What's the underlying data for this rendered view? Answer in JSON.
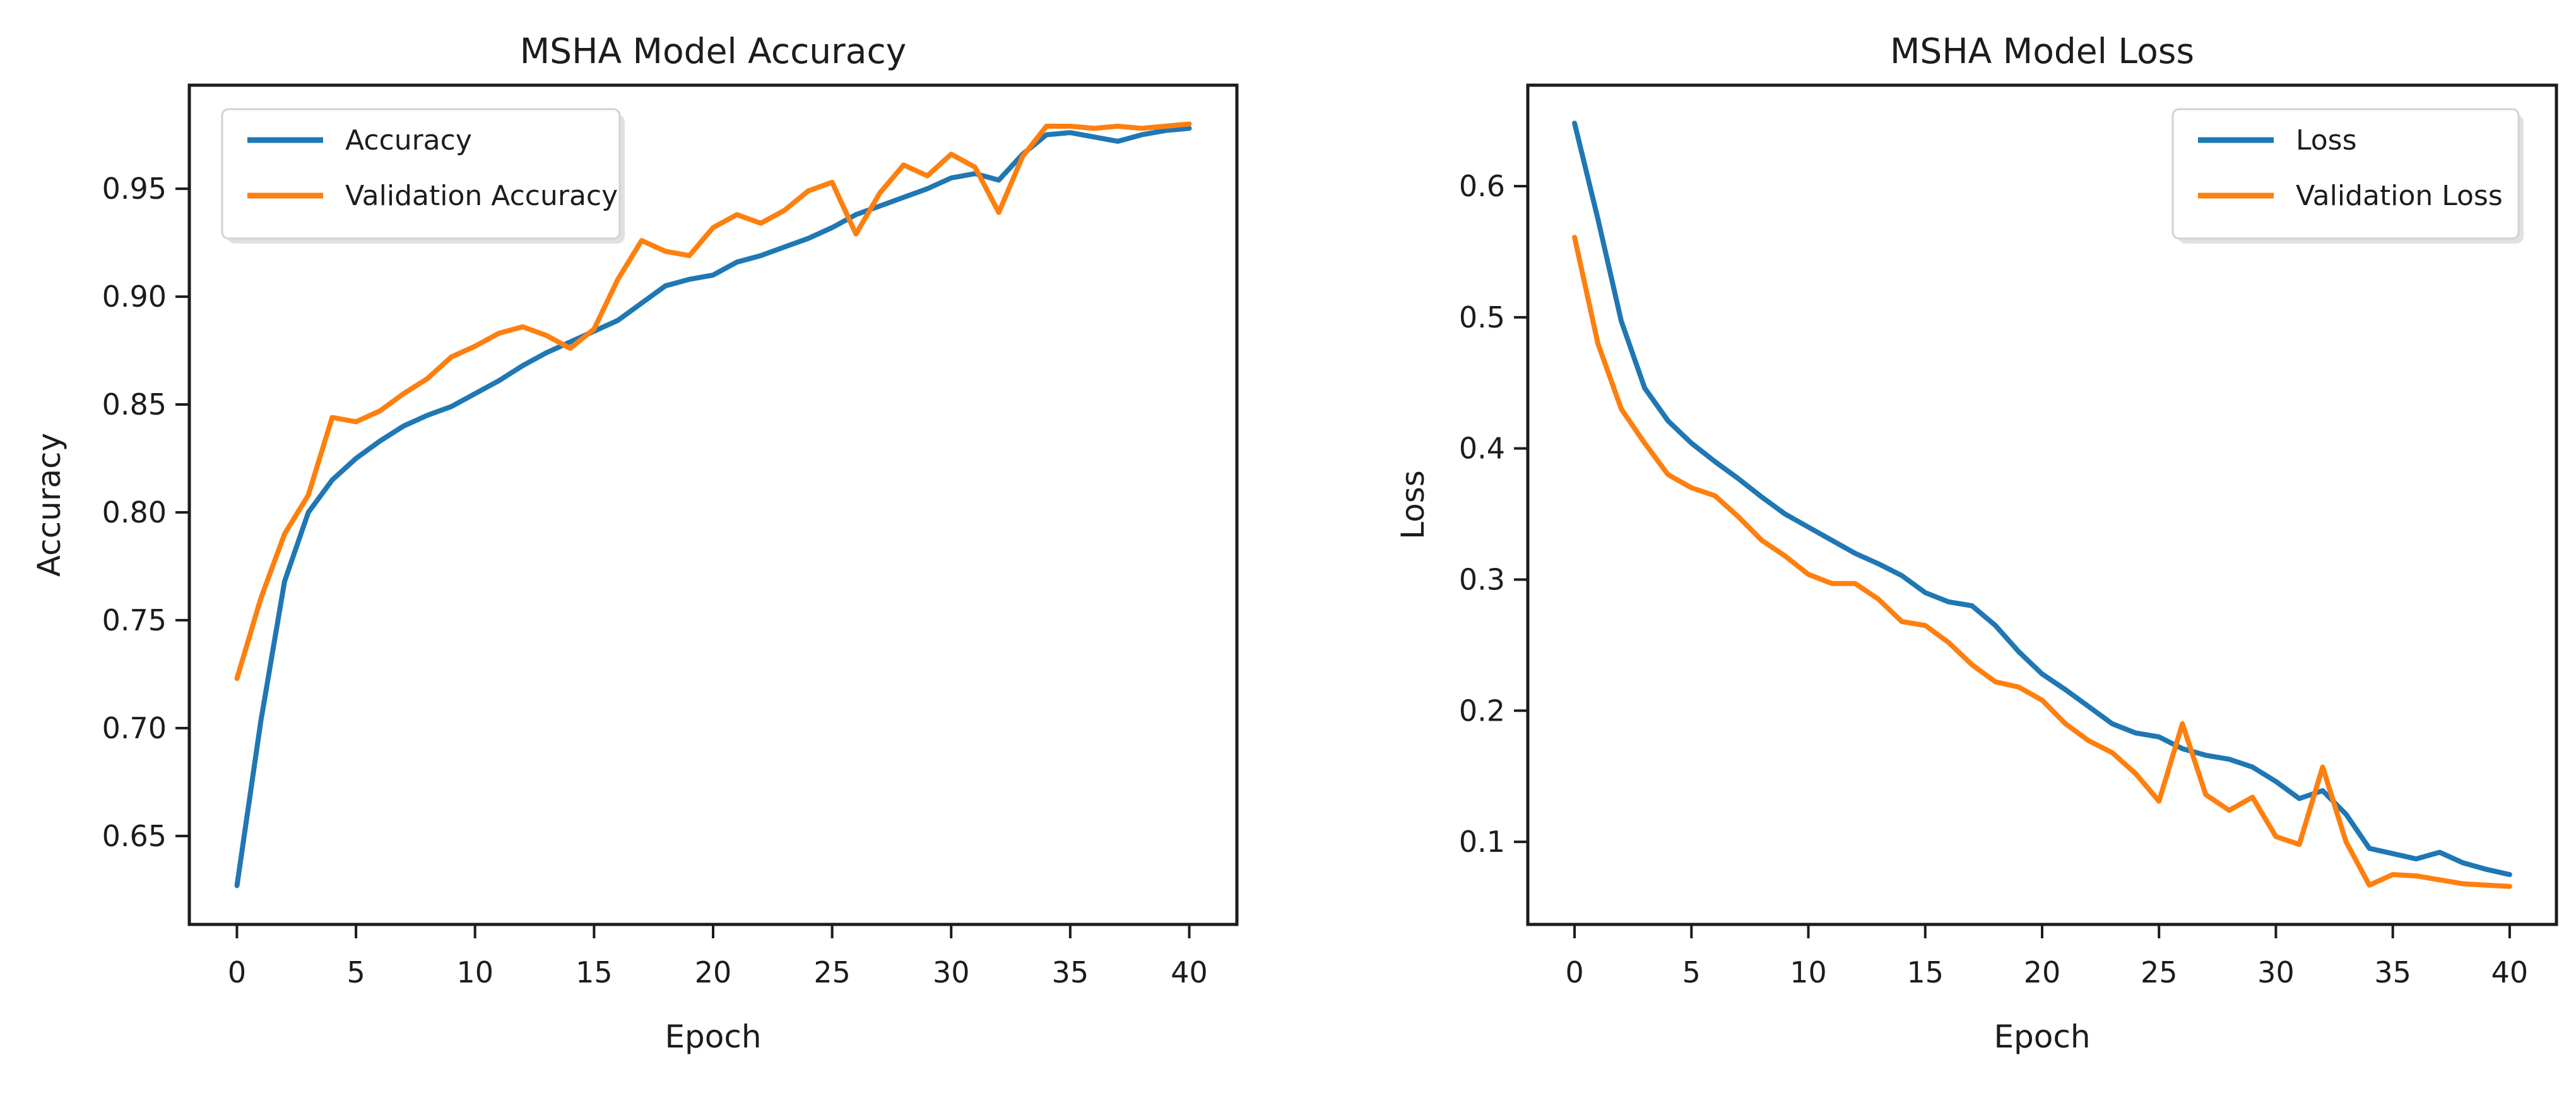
{
  "figure": {
    "background": "#ffffff",
    "text_color": "#1c1c1c",
    "spine_color": "#1c1c1c",
    "accent_blue": "#1f77b4",
    "accent_orange": "#ff7f0e"
  },
  "chart_data": [
    {
      "id": "accuracy",
      "type": "line",
      "title": "MSHA Model Accuracy",
      "xlabel": "Epoch",
      "ylabel": "Accuracy",
      "xlim": [
        -2,
        42
      ],
      "ylim": [
        0.609,
        0.998
      ],
      "xticks": [
        0,
        5,
        10,
        15,
        20,
        25,
        30,
        35,
        40
      ],
      "yticks": [
        0.65,
        0.7,
        0.75,
        0.8,
        0.85,
        0.9,
        0.95
      ],
      "ytick_decimals": 2,
      "grid": false,
      "legend": {
        "position": "upper-left",
        "entries": [
          {
            "label": "Accuracy",
            "color": "#1f77b4"
          },
          {
            "label": "Validation Accuracy",
            "color": "#ff7f0e"
          }
        ]
      },
      "x": [
        0,
        1,
        2,
        3,
        4,
        5,
        6,
        7,
        8,
        9,
        10,
        11,
        12,
        13,
        14,
        15,
        16,
        17,
        18,
        19,
        20,
        21,
        22,
        23,
        24,
        25,
        26,
        27,
        28,
        29,
        30,
        31,
        32,
        33,
        34,
        35,
        36,
        37,
        38,
        39,
        40
      ],
      "series": [
        {
          "name": "Accuracy",
          "color": "#1f77b4",
          "values": [
            0.627,
            0.703,
            0.768,
            0.8,
            0.815,
            0.825,
            0.833,
            0.84,
            0.845,
            0.849,
            0.855,
            0.861,
            0.868,
            0.874,
            0.879,
            0.884,
            0.889,
            0.897,
            0.905,
            0.908,
            0.91,
            0.916,
            0.919,
            0.923,
            0.927,
            0.932,
            0.938,
            0.942,
            0.946,
            0.95,
            0.955,
            0.957,
            0.954,
            0.966,
            0.975,
            0.976,
            0.974,
            0.972,
            0.975,
            0.977,
            0.978
          ]
        },
        {
          "name": "Validation Accuracy",
          "color": "#ff7f0e",
          "values": [
            0.723,
            0.76,
            0.79,
            0.808,
            0.844,
            0.842,
            0.847,
            0.855,
            0.862,
            0.872,
            0.877,
            0.883,
            0.886,
            0.882,
            0.876,
            0.885,
            0.908,
            0.926,
            0.921,
            0.919,
            0.932,
            0.938,
            0.934,
            0.94,
            0.949,
            0.953,
            0.929,
            0.948,
            0.961,
            0.956,
            0.966,
            0.96,
            0.939,
            0.965,
            0.979,
            0.979,
            0.978,
            0.979,
            0.978,
            0.979,
            0.98
          ]
        }
      ]
    },
    {
      "id": "loss",
      "type": "line",
      "title": "MSHA Model Loss",
      "xlabel": "Epoch",
      "ylabel": "Loss",
      "xlim": [
        -2,
        42
      ],
      "ylim": [
        0.037,
        0.677
      ],
      "xticks": [
        0,
        5,
        10,
        15,
        20,
        25,
        30,
        35,
        40
      ],
      "yticks": [
        0.1,
        0.2,
        0.3,
        0.4,
        0.5,
        0.6
      ],
      "ytick_decimals": 1,
      "grid": false,
      "legend": {
        "position": "upper-right",
        "entries": [
          {
            "label": "Loss",
            "color": "#1f77b4"
          },
          {
            "label": "Validation Loss",
            "color": "#ff7f0e"
          }
        ]
      },
      "x": [
        0,
        1,
        2,
        3,
        4,
        5,
        6,
        7,
        8,
        9,
        10,
        11,
        12,
        13,
        14,
        15,
        16,
        17,
        18,
        19,
        20,
        21,
        22,
        23,
        24,
        25,
        26,
        27,
        28,
        29,
        30,
        31,
        32,
        33,
        34,
        35,
        36,
        37,
        38,
        39,
        40
      ],
      "series": [
        {
          "name": "Loss",
          "color": "#1f77b4",
          "values": [
            0.648,
            0.575,
            0.497,
            0.446,
            0.421,
            0.404,
            0.39,
            0.377,
            0.363,
            0.35,
            0.34,
            0.33,
            0.32,
            0.312,
            0.303,
            0.29,
            0.283,
            0.28,
            0.265,
            0.245,
            0.228,
            0.216,
            0.203,
            0.19,
            0.183,
            0.18,
            0.171,
            0.166,
            0.163,
            0.157,
            0.146,
            0.133,
            0.139,
            0.121,
            0.095,
            0.091,
            0.087,
            0.092,
            0.084,
            0.079,
            0.075
          ]
        },
        {
          "name": "Validation Loss",
          "color": "#ff7f0e",
          "values": [
            0.561,
            0.48,
            0.43,
            0.404,
            0.38,
            0.37,
            0.364,
            0.348,
            0.33,
            0.318,
            0.304,
            0.297,
            0.297,
            0.285,
            0.268,
            0.265,
            0.252,
            0.235,
            0.222,
            0.218,
            0.208,
            0.19,
            0.177,
            0.168,
            0.152,
            0.131,
            0.19,
            0.136,
            0.124,
            0.134,
            0.104,
            0.098,
            0.157,
            0.1,
            0.067,
            0.075,
            0.074,
            0.071,
            0.068,
            0.067,
            0.066
          ]
        }
      ]
    }
  ]
}
